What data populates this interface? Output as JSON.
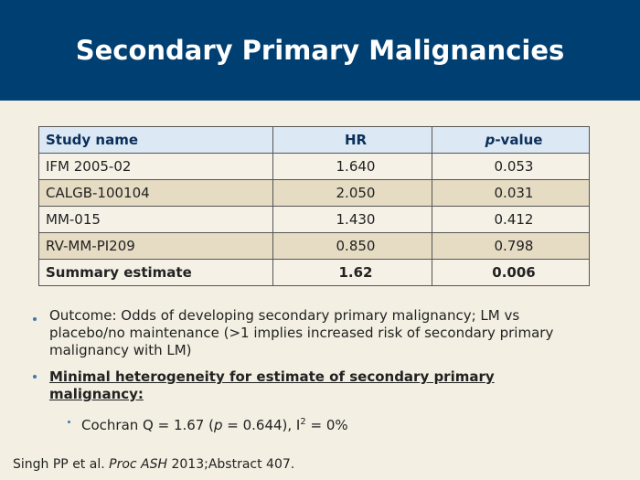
{
  "header": {
    "title": "Secondary Primary Malignancies"
  },
  "table": {
    "columns": [
      "Study name",
      "HR",
      [
        "p",
        "-value"
      ]
    ],
    "rows": [
      [
        "IFM 2005-02",
        "1.640",
        "0.053"
      ],
      [
        "CALGB-100104",
        "2.050",
        "0.031"
      ],
      [
        "MM-015",
        "1.430",
        "0.412"
      ],
      [
        "RV-MM-PI209",
        "0.850",
        "0.798"
      ],
      [
        "Summary estimate",
        "1.62",
        "0.006"
      ]
    ]
  },
  "bullets": [
    {
      "text": "Outcome: Odds of developing secondary primary malignancy; LM vs placebo/no maintenance (>1 implies increased risk of secondary primary malignancy with LM)"
    },
    {
      "text": "Minimal heterogeneity for estimate of secondary primary malignancy:"
    },
    {
      "parts": [
        "Cochran Q = 1.67 (",
        "p",
        " = 0.644), I",
        "2",
        " = 0%"
      ]
    }
  ],
  "footnote": [
    "Singh PP et al. ",
    "Proc ASH",
    " 2013;Abstract 407."
  ]
}
